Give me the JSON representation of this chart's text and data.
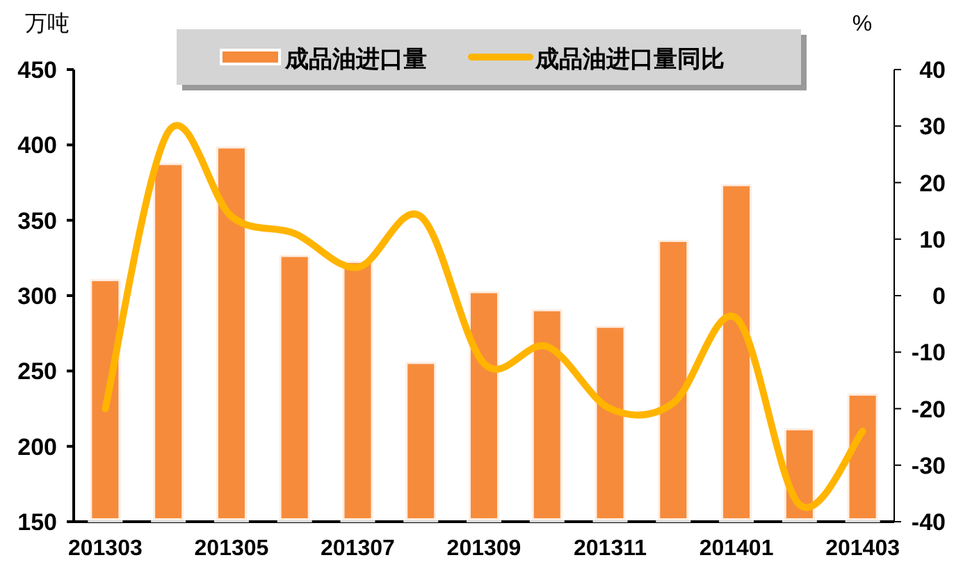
{
  "chart_data": {
    "type": "bar",
    "ylabel": "万吨",
    "y2label": "%",
    "categories": [
      "201303",
      null,
      "201305",
      null,
      "201307",
      null,
      "201309",
      null,
      "201311",
      null,
      "201401",
      null,
      "201403"
    ],
    "ylim": [
      150,
      450
    ],
    "yticks": [
      150,
      200,
      250,
      300,
      350,
      400,
      450
    ],
    "y2lim": [
      -40,
      40
    ],
    "y2ticks": [
      -40,
      -30,
      -20,
      -10,
      0,
      10,
      20,
      30,
      40
    ],
    "legend": "top",
    "series": [
      {
        "name": "成品油进口量",
        "color": "#f68b3c",
        "values": [
          311,
          388,
          399,
          327,
          323,
          256,
          303,
          291,
          280,
          337,
          374,
          212,
          235
        ]
      },
      {
        "name": "成品油进口量同比",
        "type": "line",
        "axis": "y2",
        "color": "#ffb400",
        "values": [
          -20,
          29,
          14,
          11,
          5,
          14,
          -12,
          -9,
          -20,
          -19,
          -4,
          -37,
          -24
        ]
      }
    ]
  }
}
